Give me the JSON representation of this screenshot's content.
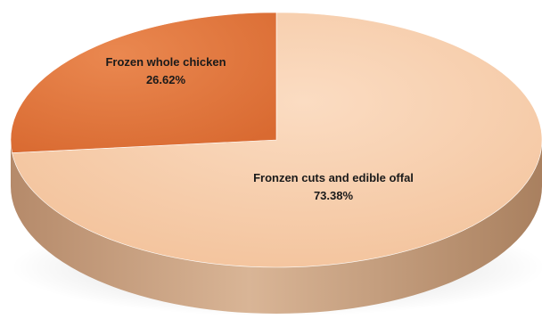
{
  "chart_data": {
    "type": "pie",
    "style": "3d",
    "slices": [
      {
        "label": "Fronzen cuts and edible offal",
        "value_text": "73.38%",
        "value": 73.38,
        "color": "#F7CCA8"
      },
      {
        "label": "Frozen whole chicken",
        "value_text": "26.62%",
        "value": 26.62,
        "color": "#E2773F"
      }
    ],
    "side_color": "#C9A384",
    "legend": "none"
  }
}
